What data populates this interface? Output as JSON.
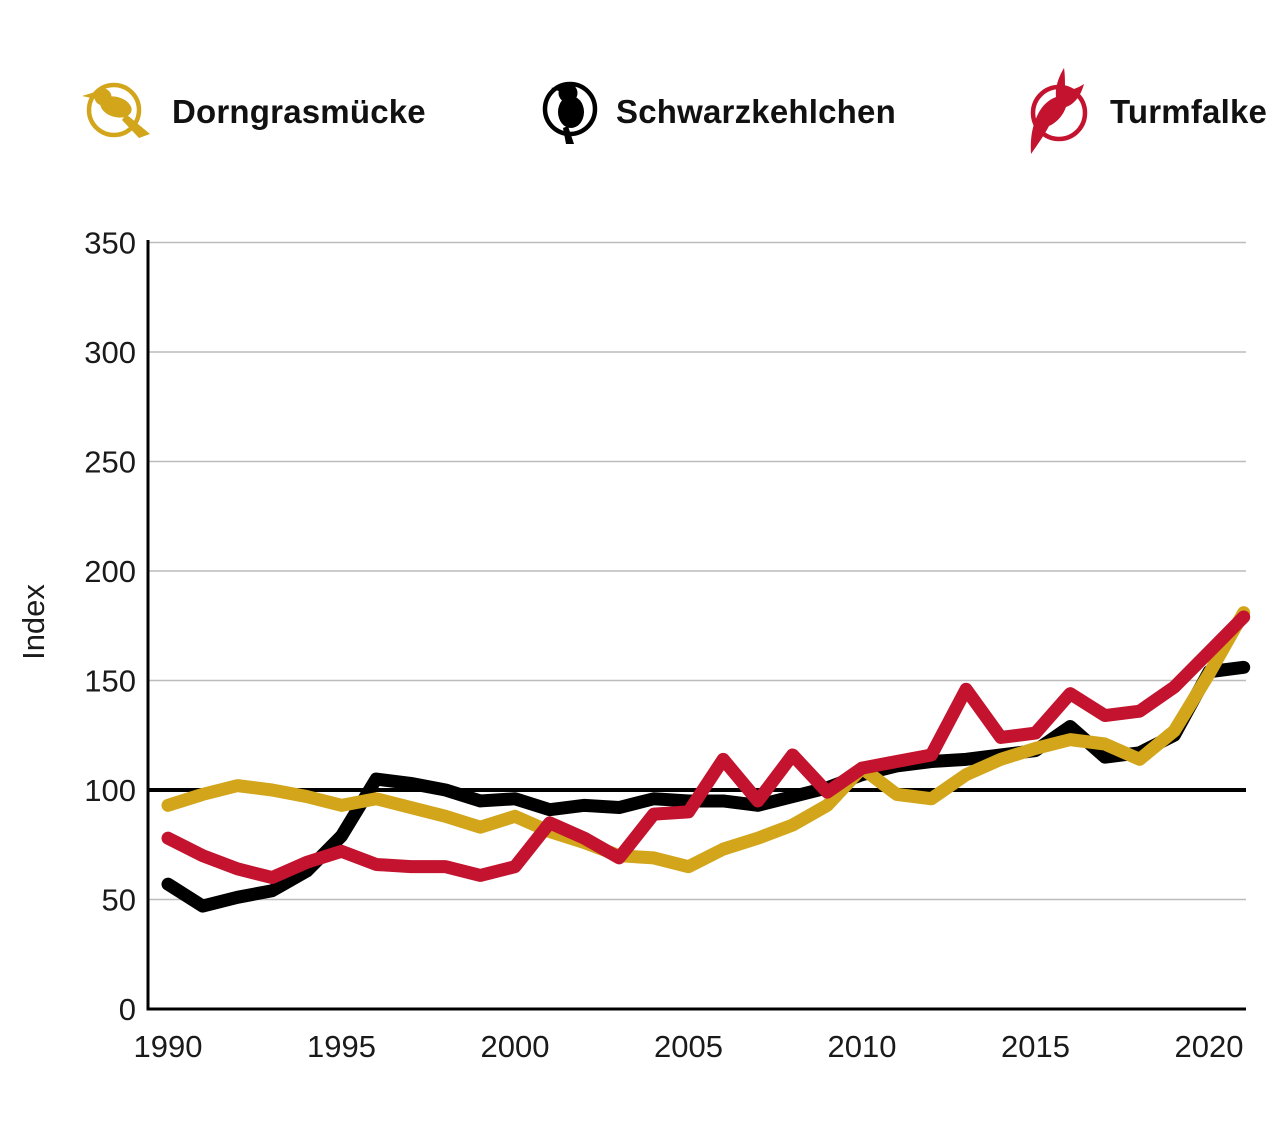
{
  "legend": [
    {
      "label": "Dorngrasmücke",
      "color": "#D2A51A",
      "icon": "warbler-icon"
    },
    {
      "label": "Schwarzkehlchen",
      "color": "#000000",
      "icon": "stonechat-icon"
    },
    {
      "label": "Turmfalke",
      "color": "#C3132E",
      "icon": "kestrel-icon"
    }
  ],
  "chart_data": {
    "type": "line",
    "title": "",
    "xlabel": "",
    "ylabel": "Index",
    "ylim": [
      0,
      350
    ],
    "yticks": [
      0,
      50,
      100,
      150,
      200,
      250,
      300,
      350
    ],
    "xticks": [
      1990,
      1995,
      2000,
      2005,
      2010,
      2015,
      2020
    ],
    "grid": "horizontal-gray",
    "legend_position": "top",
    "reference_line": 100,
    "x": [
      1990,
      1991,
      1992,
      1993,
      1994,
      1995,
      1996,
      1997,
      1998,
      1999,
      2000,
      2001,
      2002,
      2003,
      2004,
      2005,
      2006,
      2007,
      2008,
      2009,
      2010,
      2011,
      2012,
      2013,
      2014,
      2015,
      2016,
      2017,
      2018,
      2019,
      2020,
      2021
    ],
    "series": [
      {
        "name": "Dorngrasmücke",
        "color": "#D2A51A",
        "values": [
          93,
          98,
          102,
          100,
          97,
          93,
          96,
          92,
          88,
          83,
          88,
          81,
          76,
          70,
          69,
          65,
          73,
          78,
          84,
          93,
          110,
          98,
          96,
          107,
          114,
          119,
          123,
          121,
          114,
          127,
          153,
          181
        ]
      },
      {
        "name": "Schwarzkehlchen",
        "color": "#000000",
        "values": [
          57,
          47,
          51,
          54,
          63,
          79,
          105,
          103,
          100,
          95,
          96,
          91,
          93,
          92,
          96,
          95,
          95,
          93,
          97,
          101,
          107,
          111,
          113,
          114,
          116,
          118,
          129,
          115,
          117,
          125,
          154,
          156
        ]
      },
      {
        "name": "Turmfalke",
        "color": "#C3132E",
        "values": [
          78,
          70,
          64,
          60,
          67,
          72,
          66,
          65,
          65,
          61,
          65,
          85,
          78,
          69,
          89,
          90,
          114,
          95,
          116,
          99,
          110,
          113,
          116,
          146,
          124,
          126,
          144,
          134,
          136,
          147,
          163,
          179
        ]
      }
    ],
    "axis_color": "#000000",
    "gridline_color": "#bcbcbc",
    "tick_label_color": "#1a1a1a"
  }
}
